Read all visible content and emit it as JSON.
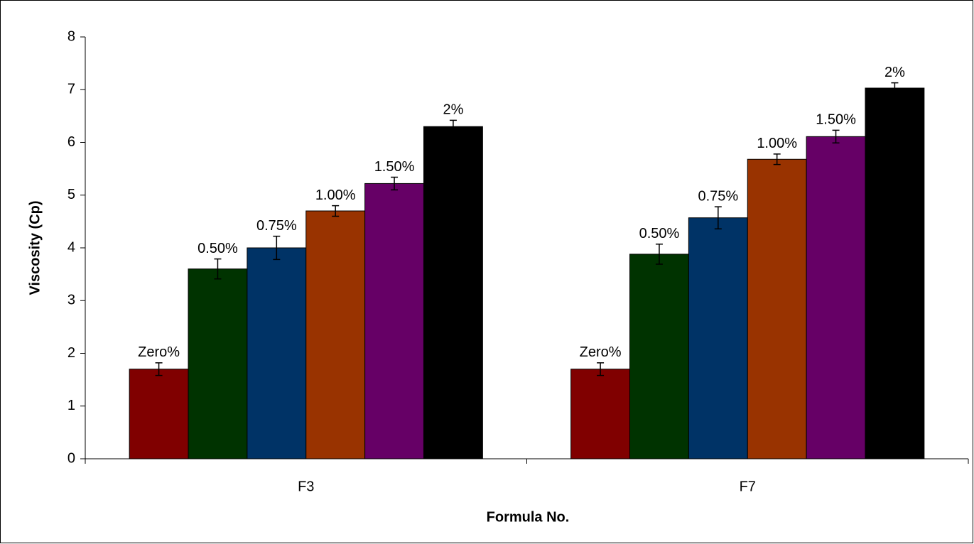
{
  "chart_data": {
    "type": "bar",
    "x_label": "Formula No.",
    "y_label": "Viscosity (Cp)",
    "categories": [
      "F3",
      "F7"
    ],
    "series": [
      {
        "name": "Zero%",
        "color": "#800000",
        "values": [
          1.7,
          1.7
        ],
        "errors": [
          0.12,
          0.12
        ]
      },
      {
        "name": "0.50%",
        "color": "#003300",
        "values": [
          3.6,
          3.88
        ],
        "errors": [
          0.19,
          0.19
        ]
      },
      {
        "name": "0.75%",
        "color": "#003366",
        "values": [
          4.0,
          4.57
        ],
        "errors": [
          0.22,
          0.21
        ]
      },
      {
        "name": "1.00%",
        "color": "#993300",
        "values": [
          4.7,
          5.68
        ],
        "errors": [
          0.1,
          0.1
        ]
      },
      {
        "name": "1.50%",
        "color": "#660066",
        "values": [
          5.22,
          6.11
        ],
        "errors": [
          0.12,
          0.12
        ]
      },
      {
        "name": "2%",
        "color": "#000000",
        "values": [
          6.3,
          7.03
        ],
        "errors": [
          0.12,
          0.1
        ]
      }
    ],
    "ylim": [
      0,
      8
    ],
    "yticks": [
      0,
      1,
      2,
      3,
      4,
      5,
      6,
      7,
      8
    ]
  }
}
